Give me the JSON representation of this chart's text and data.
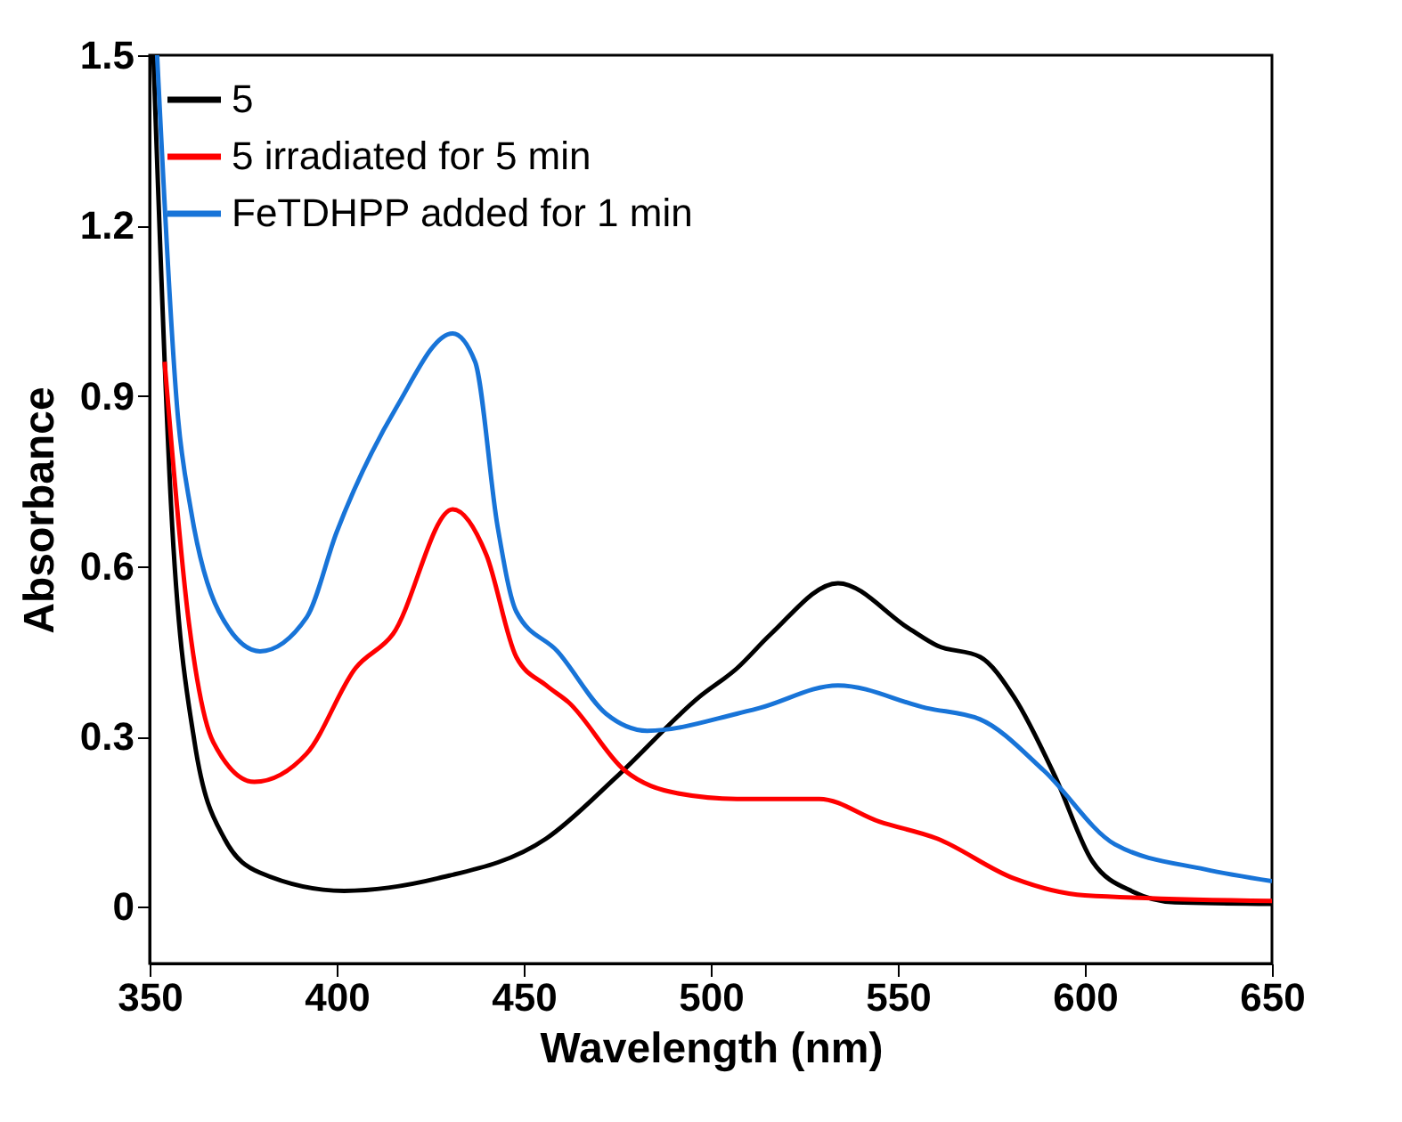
{
  "chart_data": {
    "type": "line",
    "xlabel": "Wavelength (nm)",
    "ylabel": "Absorbance",
    "xlim": [
      350,
      650
    ],
    "xticks": [
      350,
      400,
      450,
      500,
      550,
      600,
      650
    ],
    "ylim": [
      -0.1,
      1.5
    ],
    "yticks": [
      0,
      0.3,
      0.6,
      0.9,
      1.2,
      1.5
    ],
    "grid": false,
    "legend": "top left",
    "marker": "none",
    "line_style": "solid",
    "series": [
      {
        "name": "5",
        "color": "#000000",
        "x": [
          351,
          355.7,
          362,
          370,
          379.5,
          402,
          427,
          456,
          475,
          497,
          507,
          516,
          534,
          553,
          560.5,
          572,
          581,
          592,
          602,
          613,
          624,
          650
        ],
        "values": [
          1.5,
          0.71,
          0.29,
          0.12,
          0.06,
          0.028,
          0.05,
          0.12,
          0.23,
          0.37,
          0.42,
          0.48,
          0.57,
          0.49,
          0.46,
          0.44,
          0.37,
          0.23,
          0.08,
          0.026,
          0.008,
          0.005
        ]
      },
      {
        "name": "5 irradiated for 5 min",
        "color": "#ff0000",
        "x": [
          354,
          360.5,
          367,
          378,
          392,
          405,
          415,
          431,
          440,
          448,
          456,
          462,
          477,
          491,
          507,
          529,
          545,
          560.5,
          581,
          600,
          650
        ],
        "values": [
          0.96,
          0.5,
          0.29,
          0.22,
          0.27,
          0.42,
          0.48,
          0.7,
          0.62,
          0.44,
          0.39,
          0.36,
          0.24,
          0.2,
          0.19,
          0.19,
          0.15,
          0.12,
          0.05,
          0.02,
          0.01
        ]
      },
      {
        "name": "FeTDHPP added for 1 min",
        "color": "#1874d8",
        "x": [
          352,
          357.6,
          361,
          368.5,
          379.5,
          392,
          400,
          416,
          431,
          437,
          443,
          448,
          459,
          472,
          483,
          507,
          513,
          534,
          557.6,
          572,
          589,
          608,
          632,
          650
        ],
        "values": [
          1.5,
          0.86,
          0.7,
          0.52,
          0.45,
          0.51,
          0.66,
          0.88,
          1.01,
          0.96,
          0.67,
          0.52,
          0.45,
          0.34,
          0.31,
          0.34,
          0.35,
          0.39,
          0.35,
          0.33,
          0.24,
          0.11,
          0.066,
          0.045
        ]
      }
    ]
  }
}
